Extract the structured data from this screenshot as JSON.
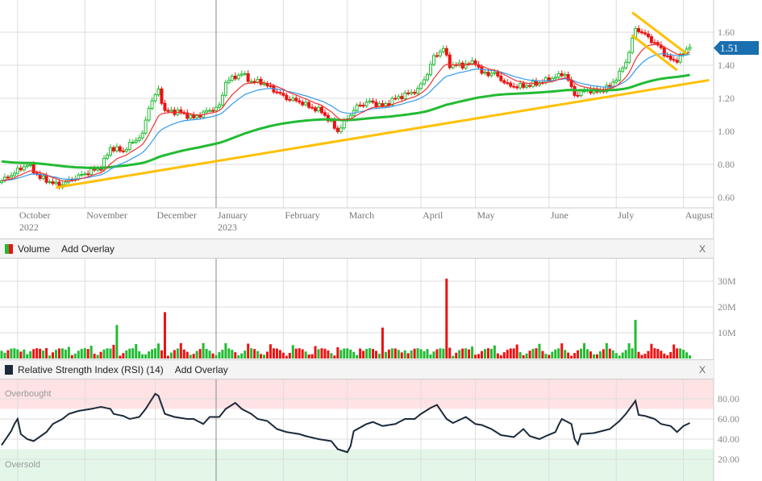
{
  "chart_data": {
    "type": "candlestick",
    "price_axis": {
      "ticks": [
        "1.60",
        "1.40",
        "1.20",
        "1.00",
        "0.80",
        "0.60"
      ],
      "range": [
        0.6,
        1.6
      ]
    },
    "last_price": "1.51",
    "months": [
      {
        "label": "October",
        "year": "2022",
        "day": 5
      },
      {
        "label": "November",
        "day": 26
      },
      {
        "label": "December",
        "day": 48
      },
      {
        "label": "January",
        "year": "2023",
        "day": 67
      },
      {
        "label": "February",
        "day": 88
      },
      {
        "label": "March",
        "day": 108
      },
      {
        "label": "April",
        "day": 131
      },
      {
        "label": "May",
        "day": 148
      },
      {
        "label": "June",
        "day": 171
      },
      {
        "label": "July",
        "day": 192
      },
      {
        "label": "August",
        "day": 213
      }
    ],
    "close_keypoints": [
      [
        0,
        0.7
      ],
      [
        8,
        0.8
      ],
      [
        12,
        0.72
      ],
      [
        18,
        0.67
      ],
      [
        23,
        0.72
      ],
      [
        28,
        0.76
      ],
      [
        31,
        0.78
      ],
      [
        34,
        0.9
      ],
      [
        38,
        0.88
      ],
      [
        40,
        0.92
      ],
      [
        44,
        0.98
      ],
      [
        46,
        1.15
      ],
      [
        49,
        1.25
      ],
      [
        51,
        1.12
      ],
      [
        55,
        1.12
      ],
      [
        60,
        1.08
      ],
      [
        64,
        1.12
      ],
      [
        68,
        1.15
      ],
      [
        70,
        1.3
      ],
      [
        73,
        1.33
      ],
      [
        75,
        1.35
      ],
      [
        78,
        1.3
      ],
      [
        81,
        1.3
      ],
      [
        85,
        1.25
      ],
      [
        89,
        1.2
      ],
      [
        93,
        1.18
      ],
      [
        96,
        1.15
      ],
      [
        100,
        1.12
      ],
      [
        103,
        1.05
      ],
      [
        105,
        1.0
      ],
      [
        108,
        1.08
      ],
      [
        111,
        1.15
      ],
      [
        115,
        1.18
      ],
      [
        119,
        1.15
      ],
      [
        123,
        1.2
      ],
      [
        126,
        1.22
      ],
      [
        130,
        1.25
      ],
      [
        133,
        1.35
      ],
      [
        135,
        1.45
      ],
      [
        138,
        1.5
      ],
      [
        140,
        1.4
      ],
      [
        144,
        1.4
      ],
      [
        148,
        1.42
      ],
      [
        150,
        1.35
      ],
      [
        154,
        1.35
      ],
      [
        158,
        1.28
      ],
      [
        161,
        1.27
      ],
      [
        165,
        1.28
      ],
      [
        169,
        1.3
      ],
      [
        173,
        1.33
      ],
      [
        176,
        1.35
      ],
      [
        179,
        1.22
      ],
      [
        183,
        1.25
      ],
      [
        186,
        1.24
      ],
      [
        190,
        1.27
      ],
      [
        193,
        1.35
      ],
      [
        195,
        1.42
      ],
      [
        198,
        1.62
      ],
      [
        200,
        1.6
      ],
      [
        203,
        1.55
      ],
      [
        205,
        1.52
      ],
      [
        208,
        1.45
      ],
      [
        210,
        1.42
      ],
      [
        213,
        1.47
      ],
      [
        215,
        1.51
      ]
    ],
    "volume": {
      "ticks": [
        "30M",
        "20M",
        "10M"
      ],
      "spikes_M": [
        [
          36,
          13
        ],
        [
          51,
          18
        ],
        [
          119,
          12
        ],
        [
          139,
          31
        ],
        [
          198,
          15
        ]
      ],
      "typical_M": 2.5
    },
    "rsi": {
      "title": "Relative Strength Index (RSI) (14)",
      "ticks": [
        "80.00",
        "60.00",
        "40.00",
        "20.00"
      ],
      "overbought": 70,
      "oversold": 30,
      "keypoints": [
        [
          0,
          34
        ],
        [
          3,
          48
        ],
        [
          4,
          55
        ],
        [
          5,
          60
        ],
        [
          6,
          45
        ],
        [
          8,
          40
        ],
        [
          10,
          38
        ],
        [
          14,
          47
        ],
        [
          16,
          55
        ],
        [
          19,
          60
        ],
        [
          21,
          65
        ],
        [
          24,
          68
        ],
        [
          28,
          70
        ],
        [
          31,
          72
        ],
        [
          34,
          70
        ],
        [
          35,
          65
        ],
        [
          38,
          63
        ],
        [
          40,
          60
        ],
        [
          43,
          62
        ],
        [
          45,
          70
        ],
        [
          48,
          85
        ],
        [
          49,
          83
        ],
        [
          51,
          65
        ],
        [
          54,
          62
        ],
        [
          58,
          60
        ],
        [
          60,
          60
        ],
        [
          63,
          55
        ],
        [
          65,
          62
        ],
        [
          68,
          62
        ],
        [
          70,
          70
        ],
        [
          73,
          76
        ],
        [
          75,
          70
        ],
        [
          78,
          65
        ],
        [
          80,
          60
        ],
        [
          83,
          58
        ],
        [
          86,
          50
        ],
        [
          89,
          47
        ],
        [
          93,
          45
        ],
        [
          95,
          43
        ],
        [
          99,
          40
        ],
        [
          103,
          38
        ],
        [
          105,
          30
        ],
        [
          108,
          27
        ],
        [
          109,
          33
        ],
        [
          110,
          48
        ],
        [
          114,
          55
        ],
        [
          116,
          57
        ],
        [
          119,
          53
        ],
        [
          123,
          55
        ],
        [
          126,
          60
        ],
        [
          129,
          60
        ],
        [
          131,
          65
        ],
        [
          134,
          71
        ],
        [
          136,
          74
        ],
        [
          139,
          60
        ],
        [
          141,
          56
        ],
        [
          145,
          62
        ],
        [
          148,
          55
        ],
        [
          150,
          54
        ],
        [
          153,
          50
        ],
        [
          156,
          44
        ],
        [
          160,
          42
        ],
        [
          163,
          50
        ],
        [
          165,
          43
        ],
        [
          168,
          40
        ],
        [
          170,
          43
        ],
        [
          173,
          47
        ],
        [
          174,
          54
        ],
        [
          175,
          60
        ],
        [
          178,
          55
        ],
        [
          179,
          40
        ],
        [
          180,
          35
        ],
        [
          181,
          45
        ],
        [
          185,
          46
        ],
        [
          190,
          50
        ],
        [
          193,
          58
        ],
        [
          195,
          65
        ],
        [
          198,
          78
        ],
        [
          199,
          64
        ],
        [
          201,
          63
        ],
        [
          204,
          60
        ],
        [
          206,
          55
        ],
        [
          209,
          53
        ],
        [
          211,
          47
        ],
        [
          213,
          53
        ],
        [
          215,
          56
        ]
      ]
    }
  },
  "volume_panel": {
    "title": "Volume",
    "add_overlay": "Add Overlay",
    "close": "X"
  },
  "rsi_panel": {
    "title": "Relative Strength Index (RSI) (14)",
    "add_overlay": "Add Overlay",
    "close": "X",
    "overbought": "Overbought",
    "oversold": "Oversold"
  },
  "colors": {
    "up": "#22bb33",
    "down": "#ee1111",
    "ma10": "#ee3333",
    "ma20": "#3399ee",
    "ma100": "#22bb33",
    "trend": "#ffc000",
    "rsi": "#1c2a3a",
    "tag": "#1a6fb0"
  }
}
